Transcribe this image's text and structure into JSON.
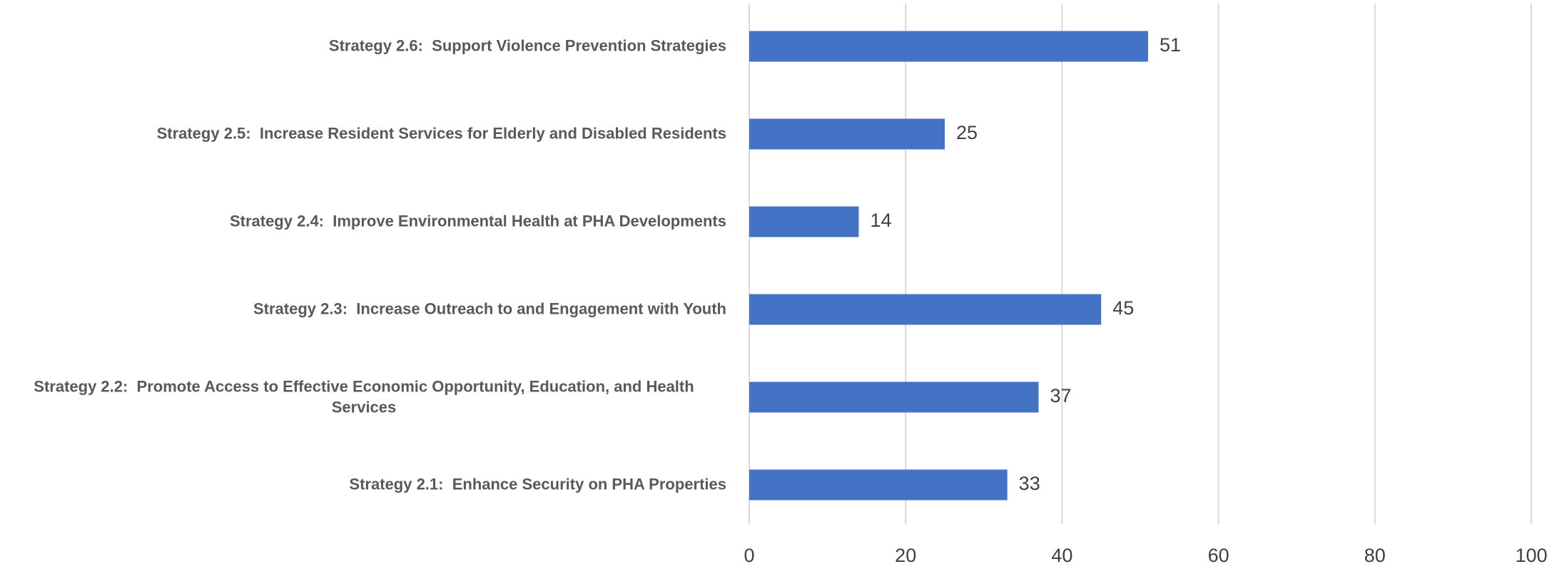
{
  "chart_data": {
    "type": "hbar",
    "categories": [
      "Strategy 2.6:  Support Violence Prevention Strategies",
      "Strategy 2.5:  Increase Resident Services for Elderly and Disabled Residents",
      "Strategy 2.4:  Improve Environmental Health at PHA Developments",
      "Strategy 2.3:  Increase Outreach to and Engagement with Youth",
      "Strategy 2.2:  Promote Access to Effective Economic Opportunity, Education, and Health Services",
      "Strategy 2.1:  Enhance Security on PHA Properties"
    ],
    "values": [
      51,
      25,
      14,
      45,
      37,
      33
    ],
    "color": "#4472c4",
    "xlim": [
      0,
      100
    ],
    "xticks": [
      0,
      20,
      40,
      60,
      80,
      100
    ],
    "grid": true
  }
}
